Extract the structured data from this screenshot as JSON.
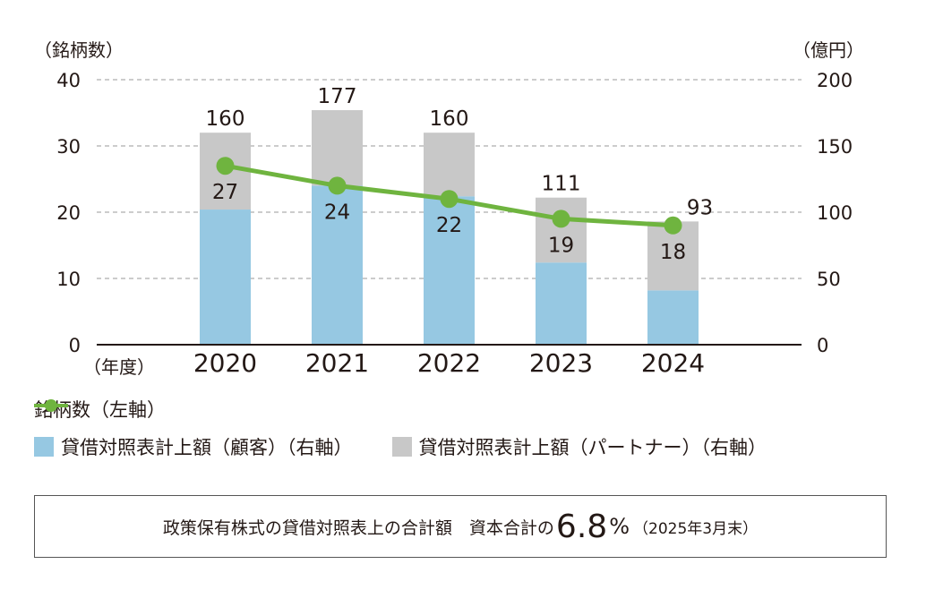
{
  "chart_data": {
    "type": "bar+line",
    "categories": [
      "2020",
      "2021",
      "2022",
      "2023",
      "2024"
    ],
    "x_axis_unit_label": "（年度）",
    "left_axis": {
      "label": "（銘柄数）",
      "ylim": [
        0,
        40
      ],
      "ticks": [
        0,
        10,
        20,
        30,
        40
      ]
    },
    "right_axis": {
      "label": "（億円）",
      "ylim": [
        0,
        200
      ],
      "ticks": [
        0,
        50,
        100,
        150,
        200
      ]
    },
    "grid": true,
    "series": [
      {
        "name": "貸借対照表計上額（顧客）（右軸）",
        "type": "bar",
        "axis": "right",
        "color": "#96c8e2",
        "values": [
          102,
          120,
          112,
          62,
          41
        ]
      },
      {
        "name": "貸借対照表計上額（パートナー）（右軸）",
        "type": "bar",
        "axis": "right",
        "color": "#c8c8c8",
        "values": [
          58,
          57,
          48,
          49,
          52
        ]
      },
      {
        "name": "銘柄数（左軸）",
        "type": "line",
        "axis": "left",
        "color": "#6fb43f",
        "values": [
          27,
          24,
          22,
          19,
          18
        ]
      }
    ],
    "bar_totals": [
      160,
      177,
      160,
      111,
      93
    ]
  },
  "legend": {
    "line": "銘柄数（左軸）",
    "customer": "貸借対照表計上額（顧客）（右軸）",
    "partner": "貸借対照表計上額（パートナー）（右軸）"
  },
  "note": {
    "text": "政策保有株式の貸借対照表上の合計額　資本合計の",
    "value": "6.8",
    "unit": "%",
    "date": "（2025年3月末）"
  }
}
